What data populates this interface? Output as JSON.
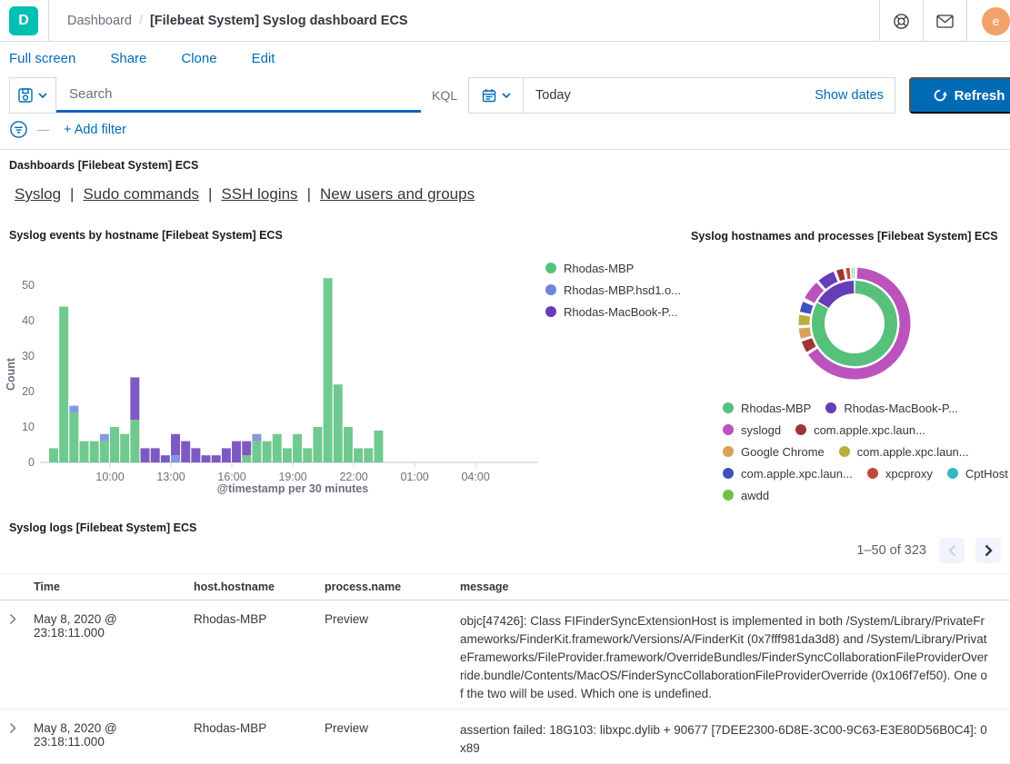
{
  "header": {
    "logo_letter": "D",
    "breadcrumb_root": "Dashboard",
    "breadcrumb_sep": "/",
    "breadcrumb_current": "[Filebeat System] Syslog dashboard ECS",
    "avatar_initial": "e",
    "icons": [
      "help-icon",
      "mail-icon"
    ]
  },
  "menu": {
    "items": [
      "Full screen",
      "Share",
      "Clone",
      "Edit"
    ]
  },
  "query_bar": {
    "search_placeholder": "Search",
    "kql_label": "KQL",
    "date_value": "Today",
    "show_dates_label": "Show dates",
    "refresh_label": "Refresh",
    "add_filter_label": "+ Add filter"
  },
  "colors": {
    "primary_blue": "#006BB4",
    "logo_teal": "#00BFB3",
    "avatar_orange": "#EFA36A",
    "text_dark": "#343741",
    "text_subdued": "#69707D",
    "border": "#d3dae6"
  },
  "panels": {
    "markdown": {
      "title": "Dashboards [Filebeat System] ECS",
      "links": [
        "Syslog",
        "Sudo commands",
        "SSH logins",
        "New users and groups"
      ],
      "separator": "|"
    },
    "bar_panel_title": "Syslog events by hostname [Filebeat System] ECS",
    "donut_panel_title": "Syslog hostnames and processes [Filebeat System] ECS",
    "logs": {
      "title": "Syslog logs [Filebeat System] ECS",
      "pagination": "1–50 of 323",
      "columns": [
        "Time",
        "host.hostname",
        "process.name",
        "message"
      ],
      "rows": [
        {
          "time": "May 8, 2020 @ 23:18:11.000",
          "host": "Rhodas-MBP",
          "process": "Preview",
          "message": "objc[47426]: Class FIFinderSyncExtensionHost is implemented in both /System/Library/PrivateFrameworks/FinderKit.framework/Versions/A/FinderKit (0x7fff981da3d8) and /System/Library/PrivateFrameworks/FileProvider.framework/OverrideBundles/FinderSyncCollaborationFileProviderOverride.bundle/Contents/MacOS/FinderSyncCollaborationFileProviderOverride (0x106f7ef50). One of the two will be used. Which one is undefined."
        },
        {
          "time": "May 8, 2020 @ 23:18:11.000",
          "host": "Rhodas-MBP",
          "process": "Preview",
          "message": "assertion failed: 18G103: libxpc.dylib + 90677 [7DEE2300-6D8E-3C00-9C63-E3E80D56B0C4]: 0x89"
        }
      ]
    }
  },
  "chart_data": [
    {
      "type": "bar",
      "stacked": true,
      "title": "Syslog events by hostname [Filebeat System] ECS",
      "xlabel": "@timestamp per 30 minutes",
      "ylabel": "Count",
      "ylim": [
        0,
        55
      ],
      "yticks": [
        0,
        10,
        20,
        30,
        40,
        50
      ],
      "xticklabels": [
        "10:00",
        "13:00",
        "16:00",
        "19:00",
        "22:00",
        "01:00",
        "04:00"
      ],
      "xtick_bar_positions": [
        6,
        12,
        18,
        24,
        30,
        36,
        42
      ],
      "total_slots": 48,
      "bin_minutes": 30,
      "legend_position": "right",
      "series": [
        {
          "name": "Rhodas-MBP",
          "color": "#57c17b",
          "values": [
            4,
            44,
            14,
            6,
            6,
            6,
            10,
            8,
            12,
            0,
            0,
            0,
            0,
            0,
            0,
            0,
            0,
            0,
            0,
            2,
            6,
            6,
            8,
            4,
            8,
            4,
            10,
            52,
            22,
            10,
            4,
            4,
            9
          ]
        },
        {
          "name": "Rhodas-MBP.hsd1.o...",
          "color": "#6f87d8",
          "values": [
            0,
            0,
            2,
            0,
            0,
            2,
            0,
            0,
            0,
            0,
            0,
            0,
            2,
            0,
            0,
            0,
            0,
            0,
            0,
            0,
            2,
            0,
            0,
            0,
            0,
            0,
            0,
            0,
            0,
            0,
            0,
            0,
            0
          ]
        },
        {
          "name": "Rhodas-MacBook-P...",
          "color": "#663db8",
          "values": [
            0,
            0,
            0,
            0,
            0,
            0,
            0,
            0,
            12,
            4,
            4,
            2,
            6,
            6,
            4,
            2,
            2,
            4,
            6,
            4,
            0,
            0,
            0,
            0,
            0,
            0,
            0,
            0,
            0,
            0,
            0,
            0,
            0
          ]
        }
      ]
    },
    {
      "type": "donut",
      "title": "Syslog hostnames and processes [Filebeat System] ECS",
      "rings": {
        "inner": [
          {
            "label": "Rhodas-MBP",
            "color": "#57c17b",
            "start_deg": 0,
            "end_deg": 300
          },
          {
            "label": "Rhodas-MacBook-P...",
            "color": "#663db8",
            "start_deg": 300,
            "end_deg": 360
          }
        ],
        "outer": [
          {
            "label": "syslogd",
            "color": "#bc52bc",
            "start_deg": 2,
            "end_deg": 237
          },
          {
            "label": "com.apple.xpc.laun...",
            "color": "#9e3533",
            "start_deg": 238,
            "end_deg": 252
          },
          {
            "label": "Google Chrome",
            "color": "#d8a25d",
            "start_deg": 253,
            "end_deg": 266
          },
          {
            "label": "com.apple.xpc.laun...",
            "color": "#bcae3c",
            "start_deg": 267,
            "end_deg": 280
          },
          {
            "label": "com.apple.xpc.laun...",
            "color": "#3f51c1",
            "start_deg": 281,
            "end_deg": 294
          },
          {
            "label": "syslogd",
            "color": "#bc52bc",
            "start_deg": 296,
            "end_deg": 318
          },
          {
            "label": "Rhodas-MacBook-P...",
            "color": "#663db8",
            "start_deg": 319,
            "end_deg": 339
          },
          {
            "label": "com.apple.xpc.laun...",
            "color": "#9e3533",
            "start_deg": 340,
            "end_deg": 349
          },
          {
            "label": "xpcproxy",
            "color": "#c04a3a",
            "start_deg": 350,
            "end_deg": 356
          },
          {
            "label": "CptHost",
            "color": "#38b4c7",
            "start_deg": 356.8,
            "end_deg": 358.2
          },
          {
            "label": "awdd",
            "color": "#70c247",
            "start_deg": 358.8,
            "end_deg": 360
          }
        ]
      },
      "legend_rows": [
        [
          {
            "label": "Rhodas-MBP",
            "color": "#57c17b"
          },
          {
            "label": "Rhodas-MacBook-P...",
            "color": "#663db8"
          }
        ],
        [
          {
            "label": "syslogd",
            "color": "#bc52bc"
          },
          {
            "label": "com.apple.xpc.laun...",
            "color": "#9e3533"
          }
        ],
        [
          {
            "label": "Google Chrome",
            "color": "#d8a25d"
          },
          {
            "label": "com.apple.xpc.laun...",
            "color": "#bcae3c"
          }
        ],
        [
          {
            "label": "com.apple.xpc.laun...",
            "color": "#3f51c1"
          },
          {
            "label": "xpcproxy",
            "color": "#c04a3a"
          },
          {
            "label": "CptHost",
            "color": "#38b4c7"
          }
        ],
        [
          {
            "label": "awdd",
            "color": "#70c247"
          }
        ]
      ]
    }
  ]
}
